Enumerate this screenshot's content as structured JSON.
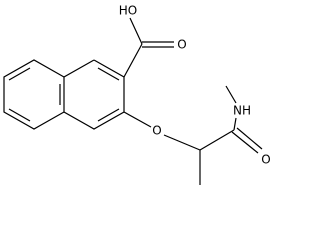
{
  "atoms": {
    "acid_hydroxyl": "HO",
    "acid_carbonyl": "O",
    "ether": "O",
    "amide_nitrogen": "NH",
    "amide_carbonyl": "O"
  }
}
